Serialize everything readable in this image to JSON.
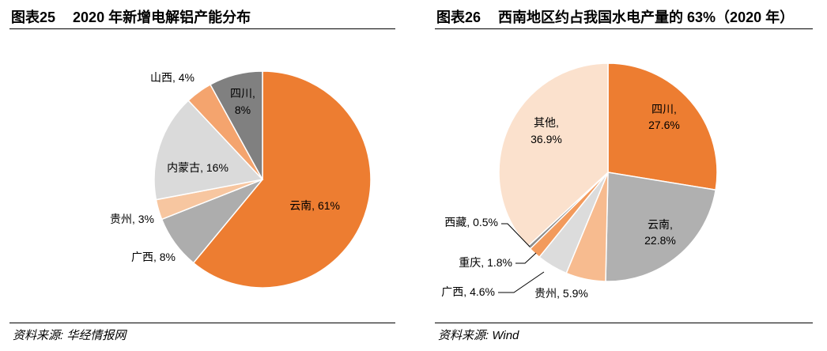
{
  "colors": {
    "orange": "#ED7D31",
    "grey_mid": "#A5A5A5",
    "grey_dark": "#7F7F7F",
    "grey_light": "#D9D9D9",
    "peach": "#F4B183",
    "peach_mid": "#F4A261",
    "peach_pale": "#FBE0CC",
    "white_gap": "#FFFFFF"
  },
  "chart_data": [
    {
      "type": "pie",
      "figure_no": "图表25",
      "title": "2020 年新增电解铝产能分布",
      "source": "资料来源: 华经情报网",
      "start": "12 o'clock, clockwise",
      "slices": [
        {
          "name": "云南",
          "value": 61,
          "label": "云南, 61%",
          "color": "#ED7D31"
        },
        {
          "name": "广西",
          "value": 8,
          "label": "广西, 8%",
          "color": "#ADADAD"
        },
        {
          "name": "贵州",
          "value": 3,
          "label": "贵州, 3%",
          "color": "#F7C6A0"
        },
        {
          "name": "内蒙古",
          "value": 16,
          "label": "内蒙古, 16%",
          "color": "#DADADA"
        },
        {
          "name": "山西",
          "value": 4,
          "label": "山西, 4%",
          "color": "#F4A46E"
        },
        {
          "name": "四川",
          "value": 8,
          "label_lines": [
            "四川,",
            "8%"
          ],
          "color": "#808080"
        }
      ]
    },
    {
      "type": "pie",
      "figure_no": "图表26",
      "title": "西南地区约占我国水电产量的 63%（2020 年）",
      "source": "资料来源: Wind",
      "start": "12 o'clock, clockwise",
      "slices": [
        {
          "name": "四川",
          "value": 27.6,
          "label_lines": [
            "四川,",
            "27.6%"
          ],
          "color": "#ED7D31"
        },
        {
          "name": "云南",
          "value": 22.8,
          "label_lines": [
            "云南,",
            "22.8%"
          ],
          "color": "#B0B0B0"
        },
        {
          "name": "贵州",
          "value": 5.9,
          "label": "贵州, 5.9%",
          "color": "#F7BB8F"
        },
        {
          "name": "广西",
          "value": 4.6,
          "label": "广西, 4.6%",
          "color": "#DCDCDC"
        },
        {
          "name": "重庆",
          "value": 1.8,
          "label": "重庆, 1.8%",
          "color": "#F29A5C"
        },
        {
          "name": "西藏",
          "value": 0.5,
          "label": "西藏, 0.5%",
          "color": "#8C8C8C"
        },
        {
          "name": "其他",
          "value": 36.9,
          "label_lines": [
            "其他,",
            "36.9%"
          ],
          "color": "#FBE1CD"
        }
      ]
    }
  ]
}
